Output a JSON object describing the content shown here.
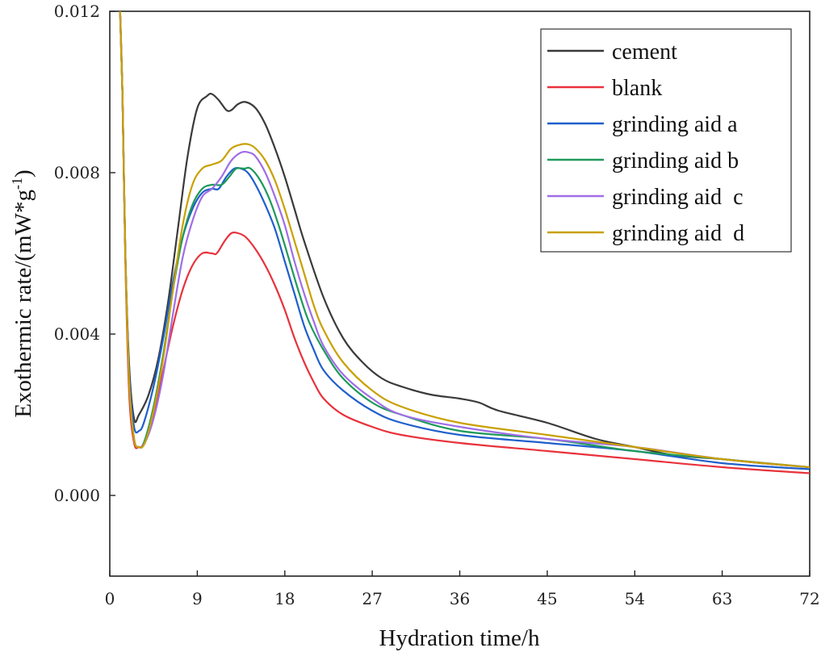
{
  "chart_data": {
    "type": "line",
    "xlabel": "Hydration time/h",
    "ylabel_main": "Exothermic rate/(mW*g",
    "ylabel_sup": "-1",
    "ylabel_end": ")",
    "xlim": [
      0,
      72
    ],
    "ylim": [
      -0.002,
      0.012
    ],
    "x_ticks": [
      "0",
      "9",
      "18",
      "27",
      "36",
      "45",
      "54",
      "63",
      "72"
    ],
    "y_ticks": [
      "0.000",
      "0.004",
      "0.008",
      "0.012"
    ],
    "grid": false,
    "legend_position": "top-right",
    "series": [
      {
        "name": "cement",
        "color": "#3a3a3a",
        "points": [
          [
            1.0,
            0.0125
          ],
          [
            1.3,
            0.01
          ],
          [
            1.6,
            0.006
          ],
          [
            2.0,
            0.0032
          ],
          [
            2.5,
            0.0019
          ],
          [
            3.0,
            0.002
          ],
          [
            4.0,
            0.0025
          ],
          [
            5.0,
            0.0034
          ],
          [
            6.0,
            0.0048
          ],
          [
            7.0,
            0.0066
          ],
          [
            8.0,
            0.0084
          ],
          [
            9.0,
            0.0096
          ],
          [
            10.0,
            0.0099
          ],
          [
            10.5,
            0.00995
          ],
          [
            11.2,
            0.0098
          ],
          [
            12.0,
            0.00955
          ],
          [
            12.5,
            0.00955
          ],
          [
            13.2,
            0.0097
          ],
          [
            14.0,
            0.00975
          ],
          [
            15.0,
            0.0096
          ],
          [
            16.0,
            0.0092
          ],
          [
            17.0,
            0.0086
          ],
          [
            18.0,
            0.0079
          ],
          [
            19.0,
            0.0071
          ],
          [
            20.0,
            0.0063
          ],
          [
            22.0,
            0.0049
          ],
          [
            24.0,
            0.0039
          ],
          [
            26.0,
            0.0033
          ],
          [
            28.0,
            0.0029
          ],
          [
            30.0,
            0.0027
          ],
          [
            33.0,
            0.0025
          ],
          [
            36.0,
            0.0024
          ],
          [
            38.0,
            0.0023
          ],
          [
            40.0,
            0.0021
          ],
          [
            45.0,
            0.0018
          ],
          [
            50.0,
            0.0014
          ],
          [
            54.0,
            0.0012
          ],
          [
            58.0,
            0.001
          ],
          [
            63.0,
            0.0009
          ],
          [
            67.0,
            0.0008
          ],
          [
            72.0,
            0.0007
          ]
        ]
      },
      {
        "name": "blank",
        "color": "#e8323c",
        "points": [
          [
            1.0,
            0.0125
          ],
          [
            1.3,
            0.01
          ],
          [
            1.6,
            0.0058
          ],
          [
            2.0,
            0.0025
          ],
          [
            2.5,
            0.0013
          ],
          [
            3.0,
            0.0012
          ],
          [
            3.5,
            0.0013
          ],
          [
            4.5,
            0.002
          ],
          [
            5.5,
            0.0031
          ],
          [
            6.5,
            0.0042
          ],
          [
            7.5,
            0.0051
          ],
          [
            8.5,
            0.0057
          ],
          [
            9.5,
            0.006
          ],
          [
            10.5,
            0.006
          ],
          [
            11.0,
            0.006
          ],
          [
            11.8,
            0.0063
          ],
          [
            12.5,
            0.0065
          ],
          [
            13.2,
            0.0065
          ],
          [
            14.0,
            0.0064
          ],
          [
            15.0,
            0.0061
          ],
          [
            16.0,
            0.0057
          ],
          [
            17.0,
            0.0052
          ],
          [
            18.0,
            0.0046
          ],
          [
            19.0,
            0.0039
          ],
          [
            20.0,
            0.0033
          ],
          [
            21.0,
            0.0028
          ],
          [
            22.0,
            0.0024
          ],
          [
            24.0,
            0.002
          ],
          [
            27.0,
            0.0017
          ],
          [
            30.0,
            0.0015
          ],
          [
            36.0,
            0.0013
          ],
          [
            45.0,
            0.0011
          ],
          [
            54.0,
            0.0009
          ],
          [
            63.0,
            0.0007
          ],
          [
            72.0,
            0.00055
          ]
        ]
      },
      {
        "name": "grinding aid a",
        "color": "#1f5fcc",
        "points": [
          [
            1.0,
            0.0125
          ],
          [
            1.3,
            0.01
          ],
          [
            1.6,
            0.006
          ],
          [
            2.0,
            0.003
          ],
          [
            2.5,
            0.0017
          ],
          [
            3.0,
            0.0016
          ],
          [
            3.5,
            0.0018
          ],
          [
            4.5,
            0.0027
          ],
          [
            5.5,
            0.0039
          ],
          [
            6.5,
            0.0053
          ],
          [
            7.5,
            0.0064
          ],
          [
            8.5,
            0.0071
          ],
          [
            9.5,
            0.0075
          ],
          [
            10.5,
            0.0076
          ],
          [
            11.2,
            0.0076
          ],
          [
            12.0,
            0.0079
          ],
          [
            12.8,
            0.0081
          ],
          [
            13.5,
            0.0081
          ],
          [
            14.2,
            0.008
          ],
          [
            15.0,
            0.0077
          ],
          [
            16.0,
            0.0072
          ],
          [
            17.0,
            0.0066
          ],
          [
            18.0,
            0.0058
          ],
          [
            19.0,
            0.005
          ],
          [
            20.0,
            0.0042
          ],
          [
            21.0,
            0.0036
          ],
          [
            22.0,
            0.0031
          ],
          [
            24.0,
            0.0026
          ],
          [
            27.0,
            0.0021
          ],
          [
            30.0,
            0.0018
          ],
          [
            36.0,
            0.0015
          ],
          [
            45.0,
            0.0013
          ],
          [
            54.0,
            0.0011
          ],
          [
            63.0,
            0.0008
          ],
          [
            72.0,
            0.00065
          ]
        ]
      },
      {
        "name": "grinding aid b",
        "color": "#1e9a5a",
        "points": [
          [
            1.0,
            0.0125
          ],
          [
            1.3,
            0.01
          ],
          [
            1.6,
            0.006
          ],
          [
            2.0,
            0.0028
          ],
          [
            2.5,
            0.0014
          ],
          [
            3.0,
            0.0012
          ],
          [
            3.5,
            0.0013
          ],
          [
            4.5,
            0.0022
          ],
          [
            5.5,
            0.0035
          ],
          [
            6.5,
            0.0051
          ],
          [
            7.5,
            0.0064
          ],
          [
            8.5,
            0.0072
          ],
          [
            9.5,
            0.0076
          ],
          [
            10.5,
            0.0077
          ],
          [
            11.5,
            0.0077
          ],
          [
            12.3,
            0.0079
          ],
          [
            13.0,
            0.0081
          ],
          [
            13.8,
            0.0081
          ],
          [
            14.5,
            0.0081
          ],
          [
            15.5,
            0.0078
          ],
          [
            16.5,
            0.0073
          ],
          [
            17.5,
            0.0066
          ],
          [
            18.5,
            0.0058
          ],
          [
            19.5,
            0.005
          ],
          [
            20.5,
            0.0043
          ],
          [
            22.0,
            0.0036
          ],
          [
            24.0,
            0.0029
          ],
          [
            27.0,
            0.0023
          ],
          [
            30.0,
            0.002
          ],
          [
            36.0,
            0.0016
          ],
          [
            45.0,
            0.0014
          ],
          [
            54.0,
            0.0011
          ],
          [
            63.0,
            0.0009
          ],
          [
            72.0,
            0.0007
          ]
        ]
      },
      {
        "name": "grinding aid  c",
        "color": "#a06ee6",
        "points": [
          [
            1.0,
            0.0125
          ],
          [
            1.3,
            0.01
          ],
          [
            1.6,
            0.006
          ],
          [
            2.0,
            0.0028
          ],
          [
            2.5,
            0.0014
          ],
          [
            3.0,
            0.0012
          ],
          [
            3.6,
            0.0013
          ],
          [
            4.5,
            0.0019
          ],
          [
            5.5,
            0.003
          ],
          [
            6.5,
            0.0045
          ],
          [
            7.5,
            0.0059
          ],
          [
            8.5,
            0.0068
          ],
          [
            9.5,
            0.0074
          ],
          [
            10.5,
            0.0076
          ],
          [
            11.5,
            0.0079
          ],
          [
            12.5,
            0.0083
          ],
          [
            13.5,
            0.0085
          ],
          [
            14.3,
            0.0085
          ],
          [
            15.0,
            0.0084
          ],
          [
            16.0,
            0.008
          ],
          [
            17.0,
            0.0074
          ],
          [
            18.0,
            0.0067
          ],
          [
            19.0,
            0.0058
          ],
          [
            20.0,
            0.005
          ],
          [
            21.0,
            0.0043
          ],
          [
            22.0,
            0.0037
          ],
          [
            24.0,
            0.003
          ],
          [
            27.0,
            0.0024
          ],
          [
            30.0,
            0.002
          ],
          [
            36.0,
            0.0017
          ],
          [
            45.0,
            0.0014
          ],
          [
            54.0,
            0.0012
          ],
          [
            63.0,
            0.0009
          ],
          [
            72.0,
            0.0007
          ]
        ]
      },
      {
        "name": "grinding aid  d",
        "color": "#c9a000",
        "points": [
          [
            1.0,
            0.0125
          ],
          [
            1.3,
            0.01
          ],
          [
            1.6,
            0.006
          ],
          [
            2.0,
            0.0028
          ],
          [
            2.5,
            0.0014
          ],
          [
            3.0,
            0.0012
          ],
          [
            3.6,
            0.0013
          ],
          [
            4.5,
            0.0021
          ],
          [
            5.5,
            0.0034
          ],
          [
            6.5,
            0.0051
          ],
          [
            7.5,
            0.0067
          ],
          [
            8.5,
            0.0077
          ],
          [
            9.5,
            0.0081
          ],
          [
            10.5,
            0.0082
          ],
          [
            11.5,
            0.0083
          ],
          [
            12.5,
            0.0086
          ],
          [
            13.5,
            0.0087
          ],
          [
            14.3,
            0.0087
          ],
          [
            15.0,
            0.0086
          ],
          [
            16.0,
            0.0083
          ],
          [
            17.0,
            0.0078
          ],
          [
            18.0,
            0.0071
          ],
          [
            19.0,
            0.0063
          ],
          [
            20.0,
            0.0055
          ],
          [
            21.0,
            0.0047
          ],
          [
            22.0,
            0.0041
          ],
          [
            24.0,
            0.0033
          ],
          [
            27.0,
            0.0026
          ],
          [
            30.0,
            0.0022
          ],
          [
            36.0,
            0.0018
          ],
          [
            45.0,
            0.0015
          ],
          [
            54.0,
            0.0012
          ],
          [
            63.0,
            0.0009
          ],
          [
            72.0,
            0.0007
          ]
        ]
      }
    ]
  }
}
